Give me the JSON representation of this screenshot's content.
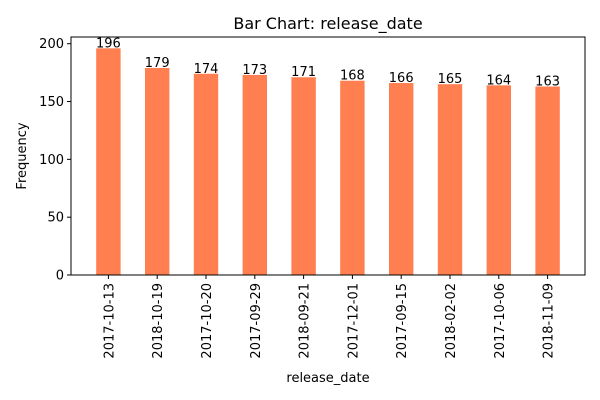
{
  "chart_data": {
    "type": "bar",
    "title": "Bar Chart: release_date",
    "xlabel": "release_date",
    "ylabel": "Frequency",
    "categories": [
      "2017-10-13",
      "2018-10-19",
      "2017-10-20",
      "2017-09-29",
      "2018-09-21",
      "2017-12-01",
      "2017-09-15",
      "2018-02-02",
      "2017-10-06",
      "2018-11-09"
    ],
    "values": [
      196,
      179,
      174,
      173,
      171,
      168,
      166,
      165,
      164,
      163
    ],
    "data_labels": [
      "196",
      "179",
      "174",
      "173",
      "171",
      "168",
      "166",
      "165",
      "164",
      "163"
    ],
    "yticks": [
      0,
      50,
      100,
      150,
      200
    ],
    "ylim": [
      0,
      205.8
    ],
    "bar_color": "#ff7f50",
    "grid": false,
    "legend": "none"
  }
}
